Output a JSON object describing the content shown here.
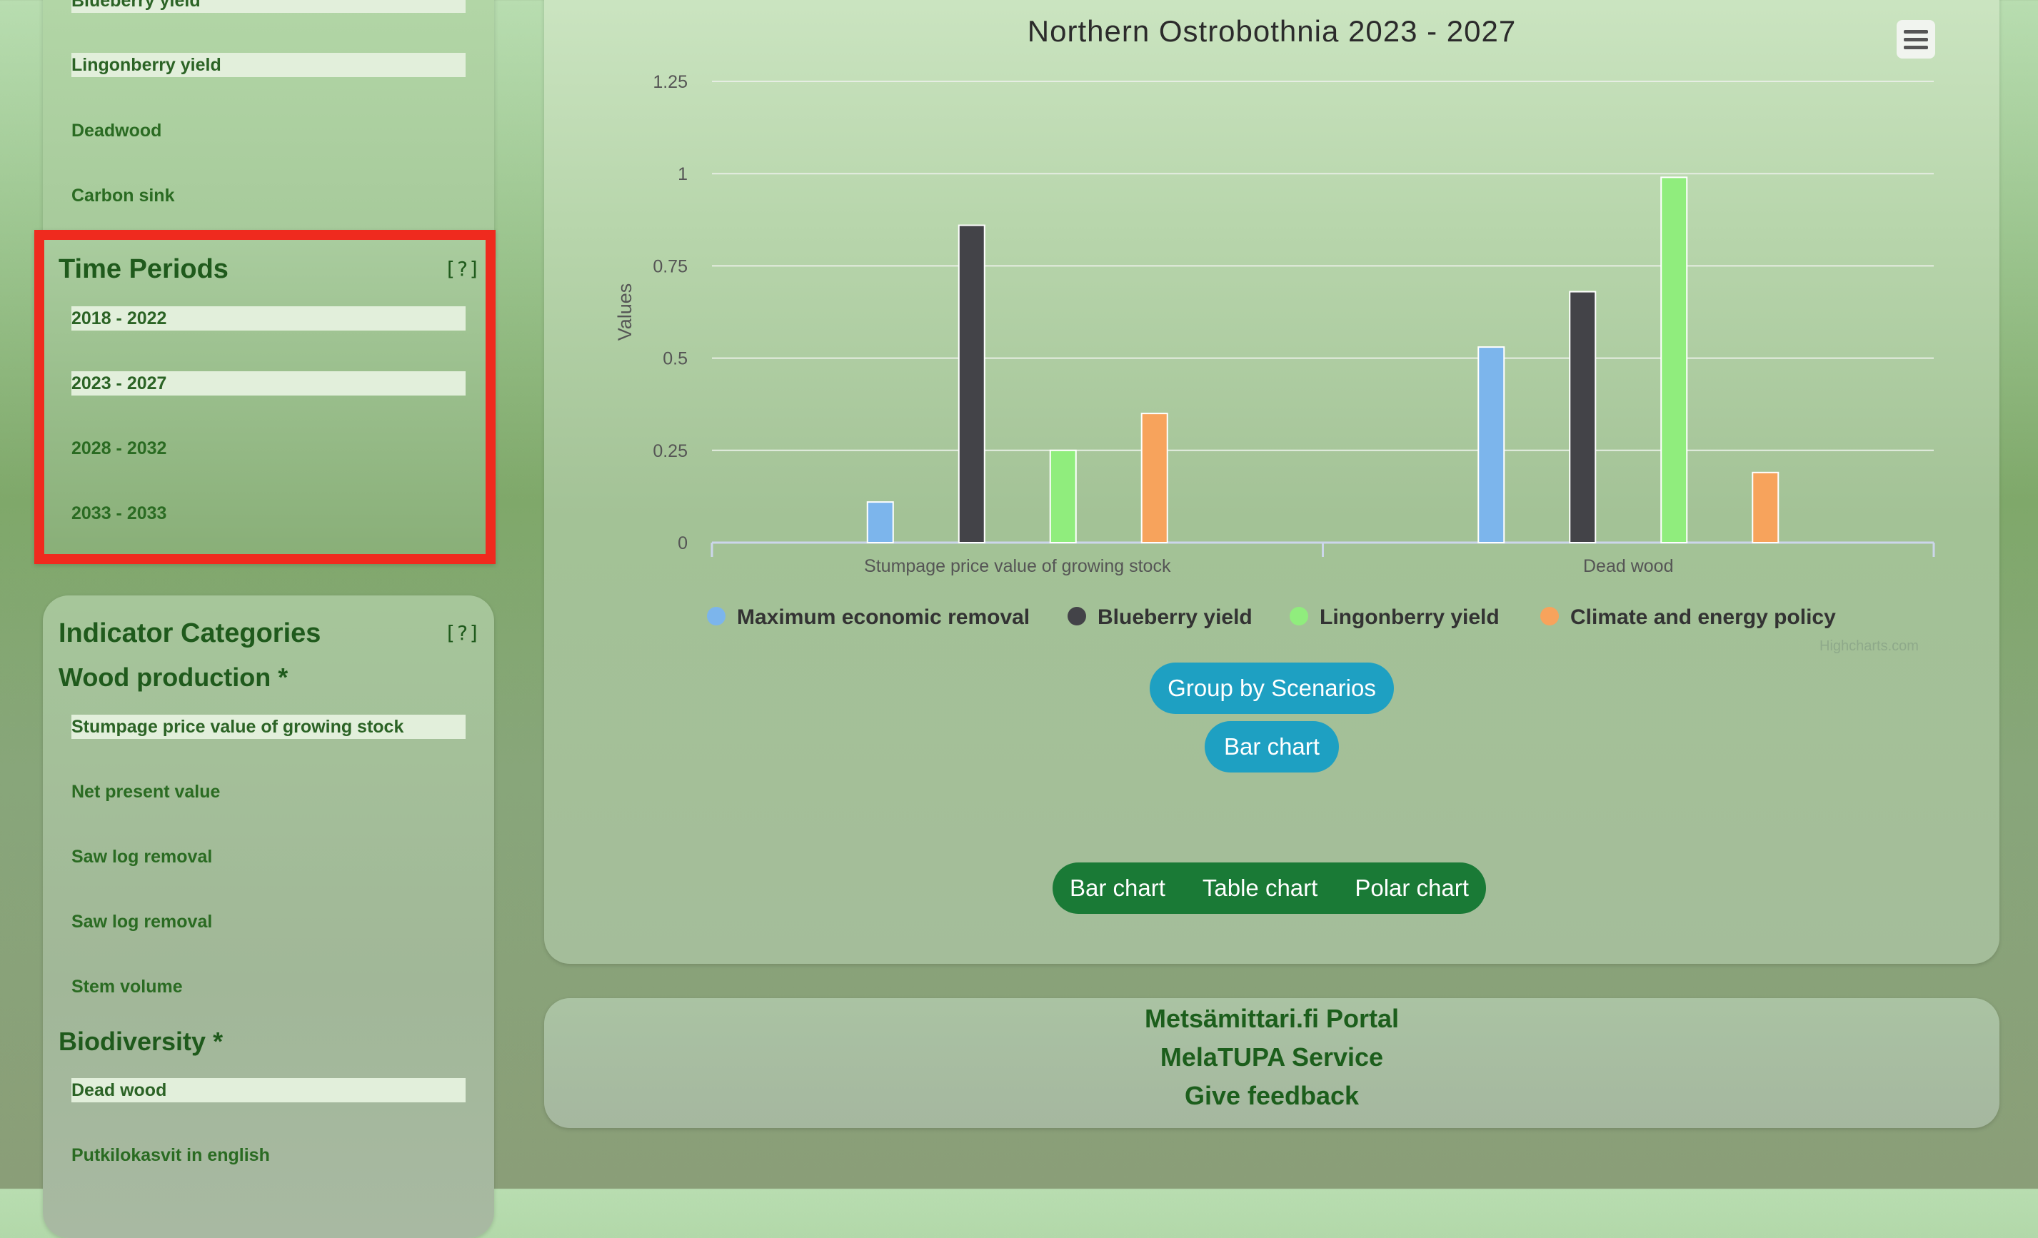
{
  "sidebar": {
    "top_items": [
      {
        "label": "Blueberry yield",
        "selected": true
      },
      {
        "label": "Lingonberry yield",
        "selected": true
      },
      {
        "label": "Deadwood",
        "selected": false
      },
      {
        "label": "Carbon sink",
        "selected": false
      }
    ],
    "time_periods": {
      "title": "Time Periods",
      "help": "[?]",
      "items": [
        {
          "label": "2018 - 2022",
          "selected": true
        },
        {
          "label": "2023 - 2027",
          "selected": true
        },
        {
          "label": "2028 - 2032",
          "selected": false
        },
        {
          "label": "2033 - 2033",
          "selected": false
        }
      ]
    },
    "indicator_categories": {
      "title": "Indicator Categories",
      "help": "[?]",
      "wood_production": {
        "title": "Wood production *",
        "items": [
          {
            "label": "Stumpage price value of growing stock",
            "selected": true
          },
          {
            "label": "Net present value",
            "selected": false
          },
          {
            "label": "Saw log removal",
            "selected": false
          },
          {
            "label": "Saw log removal",
            "selected": false
          },
          {
            "label": "Stem volume",
            "selected": false
          }
        ]
      },
      "biodiversity": {
        "title": "Biodiversity *",
        "items": [
          {
            "label": "Dead wood",
            "selected": true
          },
          {
            "label": "Putkilokasvit in english",
            "selected": false
          }
        ]
      }
    }
  },
  "chart": {
    "menu_icon": "hamburger-menu-icon",
    "credits": "Highcharts.com",
    "buttons": {
      "group_by": "Group by Scenarios",
      "bar_chart": "Bar chart"
    },
    "switch": [
      "Bar chart",
      "Table chart",
      "Polar chart"
    ]
  },
  "chart_data": {
    "type": "bar",
    "title": "Northern Ostrobothnia 2023 - 2027",
    "ylabel": "Values",
    "xlabel": "",
    "categories": [
      "Stumpage price value of growing stock",
      "Dead wood"
    ],
    "ylim": [
      0,
      1.25
    ],
    "yticks": [
      "0",
      "0.25",
      "0.5",
      "0.75",
      "1",
      "1.25"
    ],
    "grid": true,
    "legend_position": "bottom",
    "series": [
      {
        "name": "Maximum economic removal",
        "color": "#7cb5ec",
        "values": [
          0.11,
          0.53
        ]
      },
      {
        "name": "Blueberry yield",
        "color": "#434348",
        "values": [
          0.86,
          0.68
        ]
      },
      {
        "name": "Lingonberry yield",
        "color": "#90ed7d",
        "values": [
          0.25,
          0.99
        ]
      },
      {
        "name": "Climate and energy policy",
        "color": "#f7a35c",
        "values": [
          0.35,
          0.19
        ]
      }
    ]
  },
  "footer": {
    "links": [
      "Metsämittari.fi Portal",
      "MelaTUPA Service",
      "Give feedback"
    ]
  }
}
